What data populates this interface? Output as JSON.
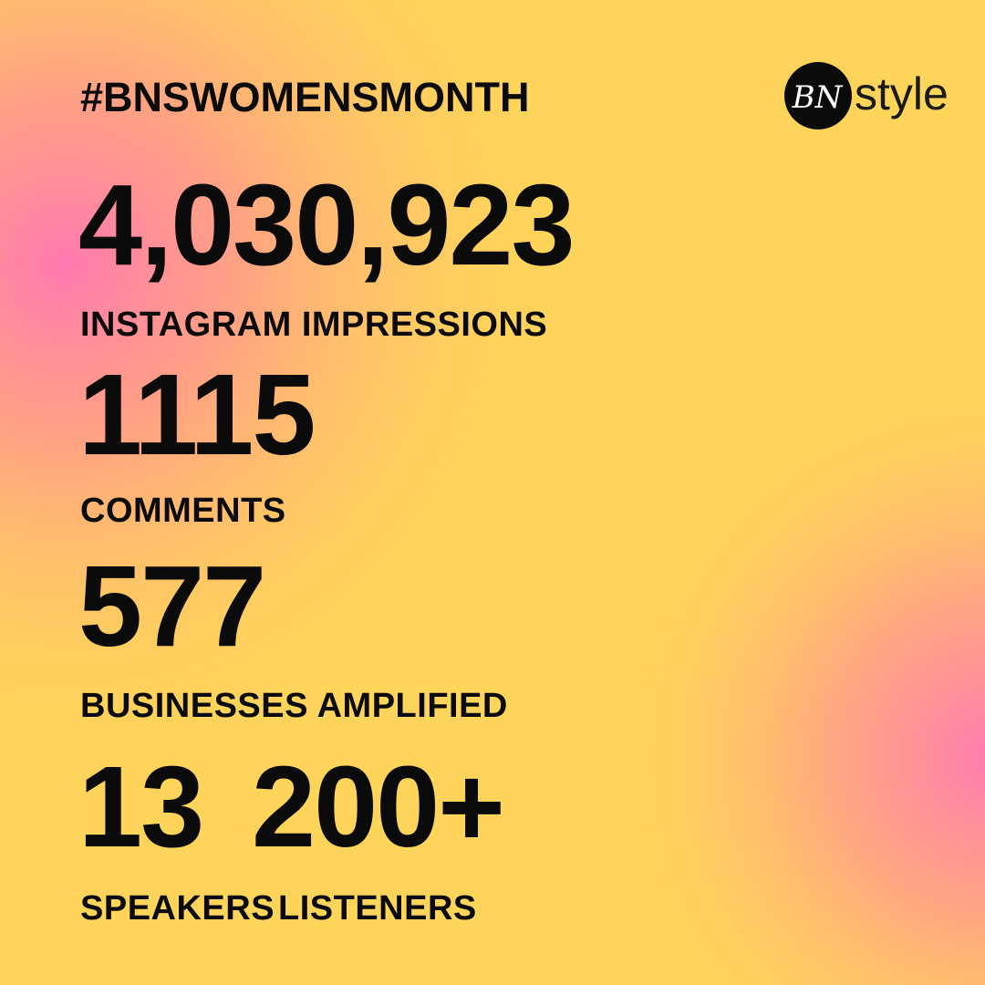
{
  "header": {
    "hashtag": "#BNSWOMENSMONTH",
    "logo": {
      "mark": "BN",
      "word": "style"
    }
  },
  "stats": [
    {
      "value": "4,030,923",
      "label": "INSTAGRAM IMPRESSIONS"
    },
    {
      "value": "1115",
      "label": "COMMENTS"
    },
    {
      "value": "577",
      "label": "BUSINESSES AMPLIFIED"
    },
    {
      "value": "13",
      "label": "SPEAKERS"
    },
    {
      "value": "200+",
      "label": "LISTENERS"
    }
  ]
}
